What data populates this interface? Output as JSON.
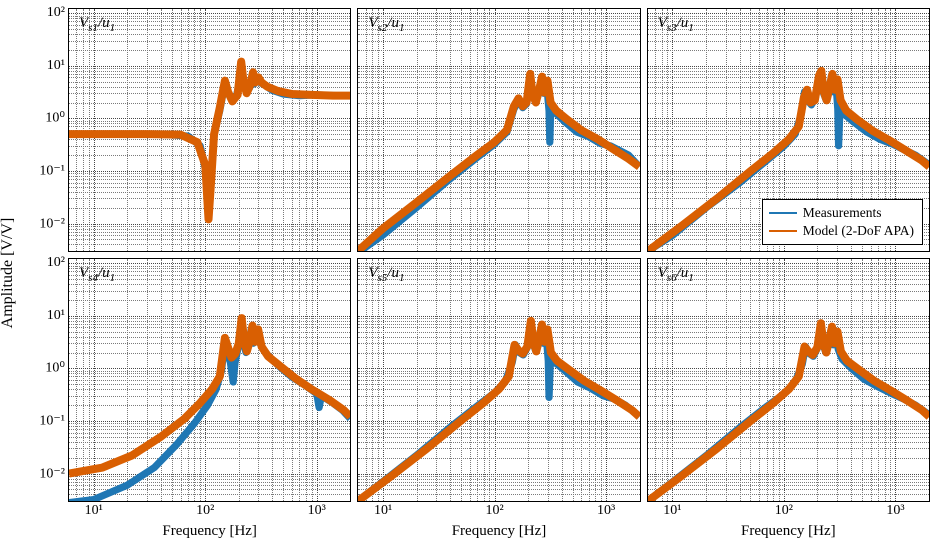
{
  "ylabel": "Amplitude [V/V]",
  "xlabel": "Frequency [Hz]",
  "x_tick_decades": [
    10,
    100,
    1000
  ],
  "x_tick_labels": [
    "10¹",
    "10²",
    "10³"
  ],
  "y_tick_decades": [
    0.001,
    0.01,
    0.1,
    1,
    10,
    100
  ],
  "y_tick_labels": [
    "10⁻³",
    "10⁻²",
    "10⁻¹",
    "10⁰",
    "10¹",
    "10²"
  ],
  "colors": {
    "measurements": "#1f77b4",
    "model": "#d95f02",
    "grid_minor": "#7a7a7a",
    "grid_major": "#464646",
    "axis": "#000000",
    "background": "#ffffff"
  },
  "line_width_meas": 1.8,
  "line_width_model": 2.0,
  "legend": {
    "panel_index": 2,
    "items": [
      {
        "label": "Measurements",
        "color_key": "measurements"
      },
      {
        "label": "Model (2-DoF APA)",
        "color_key": "model"
      }
    ]
  },
  "panels": [
    {
      "title_html": "V<span class='sub'>s1</span>/u<span class='sub'>1</span>",
      "xlim": [
        6,
        2000
      ],
      "ylim": [
        0.003,
        120
      ],
      "ytick_decades_shown": [
        0.01,
        0.1,
        1,
        10,
        100
      ],
      "meas": [
        [
          6,
          0.5
        ],
        [
          20,
          0.5
        ],
        [
          40,
          0.5
        ],
        [
          70,
          0.46
        ],
        [
          90,
          0.3
        ],
        [
          100,
          0.11
        ],
        [
          107,
          0.018
        ],
        [
          113,
          0.07
        ],
        [
          120,
          0.5
        ],
        [
          135,
          1.4
        ],
        [
          148,
          4.0
        ],
        [
          160,
          3.0
        ],
        [
          175,
          2.2
        ],
        [
          190,
          2.6
        ],
        [
          205,
          5.5
        ],
        [
          212,
          10
        ],
        [
          220,
          5.0
        ],
        [
          235,
          3.2
        ],
        [
          250,
          3.8
        ],
        [
          262,
          6.3
        ],
        [
          275,
          4.5
        ],
        [
          295,
          5.8
        ],
        [
          310,
          4.8
        ],
        [
          340,
          4.3
        ],
        [
          400,
          3.4
        ],
        [
          500,
          2.9
        ],
        [
          700,
          2.7
        ],
        [
          1000,
          2.8
        ],
        [
          1500,
          2.7
        ],
        [
          2000,
          2.7
        ]
      ],
      "model": [
        [
          6,
          0.5
        ],
        [
          30,
          0.5
        ],
        [
          60,
          0.49
        ],
        [
          85,
          0.35
        ],
        [
          100,
          0.13
        ],
        [
          107,
          0.012
        ],
        [
          112,
          0.05
        ],
        [
          120,
          0.5
        ],
        [
          135,
          1.6
        ],
        [
          150,
          5.2
        ],
        [
          160,
          3.2
        ],
        [
          175,
          2.1
        ],
        [
          195,
          2.8
        ],
        [
          210,
          12
        ],
        [
          220,
          5.2
        ],
        [
          235,
          3.0
        ],
        [
          252,
          4.2
        ],
        [
          268,
          7.5
        ],
        [
          282,
          4.8
        ],
        [
          300,
          6.0
        ],
        [
          320,
          4.8
        ],
        [
          360,
          4.0
        ],
        [
          450,
          3.3
        ],
        [
          600,
          2.9
        ],
        [
          900,
          2.8
        ],
        [
          1400,
          2.7
        ],
        [
          2000,
          2.7
        ]
      ]
    },
    {
      "title_html": "V<span class='sub'>s2</span>/u<span class='sub'>1</span>",
      "xlim": [
        6,
        2000
      ],
      "ylim": [
        0.003,
        120
      ],
      "ytick_decades_shown": [],
      "meas": [
        [
          6,
          0.0028
        ],
        [
          10,
          0.006
        ],
        [
          20,
          0.02
        ],
        [
          40,
          0.07
        ],
        [
          70,
          0.18
        ],
        [
          100,
          0.32
        ],
        [
          130,
          0.55
        ],
        [
          150,
          1.5
        ],
        [
          165,
          2.2
        ],
        [
          180,
          1.6
        ],
        [
          195,
          1.9
        ],
        [
          210,
          5.5
        ],
        [
          220,
          2.8
        ],
        [
          235,
          2.0
        ],
        [
          252,
          3.2
        ],
        [
          268,
          5.5
        ],
        [
          278,
          3.0
        ],
        [
          295,
          4.5
        ],
        [
          310,
          1.4
        ],
        [
          315,
          0.35
        ],
        [
          320,
          1.2
        ],
        [
          350,
          1.3
        ],
        [
          420,
          0.9
        ],
        [
          550,
          0.55
        ],
        [
          700,
          0.45
        ],
        [
          900,
          0.33
        ],
        [
          1100,
          0.3
        ],
        [
          1300,
          0.25
        ],
        [
          1600,
          0.2
        ],
        [
          2000,
          0.12
        ]
      ],
      "model": [
        [
          6,
          0.003
        ],
        [
          10,
          0.008
        ],
        [
          20,
          0.025
        ],
        [
          40,
          0.08
        ],
        [
          70,
          0.2
        ],
        [
          100,
          0.35
        ],
        [
          130,
          0.6
        ],
        [
          150,
          1.7
        ],
        [
          165,
          2.4
        ],
        [
          180,
          1.7
        ],
        [
          195,
          2.0
        ],
        [
          210,
          7.0
        ],
        [
          220,
          3.0
        ],
        [
          236,
          2.0
        ],
        [
          252,
          3.4
        ],
        [
          268,
          6.2
        ],
        [
          282,
          3.1
        ],
        [
          300,
          5.2
        ],
        [
          320,
          2.0
        ],
        [
          360,
          1.4
        ],
        [
          450,
          0.95
        ],
        [
          600,
          0.6
        ],
        [
          850,
          0.4
        ],
        [
          1200,
          0.25
        ],
        [
          1600,
          0.17
        ],
        [
          2000,
          0.12
        ]
      ]
    },
    {
      "title_html": "V<span class='sub'>s3</span>/u<span class='sub'>1</span>",
      "xlim": [
        6,
        2000
      ],
      "ylim": [
        0.003,
        120
      ],
      "ytick_decades_shown": [],
      "legend_here": true,
      "meas": [
        [
          6,
          0.003
        ],
        [
          10,
          0.006
        ],
        [
          20,
          0.02
        ],
        [
          40,
          0.06
        ],
        [
          70,
          0.16
        ],
        [
          100,
          0.3
        ],
        [
          125,
          0.5
        ],
        [
          142,
          1.2
        ],
        [
          152,
          3.2
        ],
        [
          162,
          2.2
        ],
        [
          175,
          1.8
        ],
        [
          190,
          2.4
        ],
        [
          205,
          6.0
        ],
        [
          215,
          7.5
        ],
        [
          225,
          3.0
        ],
        [
          238,
          2.2
        ],
        [
          252,
          3.5
        ],
        [
          265,
          6.5
        ],
        [
          275,
          3.2
        ],
        [
          290,
          5.0
        ],
        [
          302,
          1.5
        ],
        [
          307,
          0.3
        ],
        [
          315,
          1.3
        ],
        [
          345,
          1.2
        ],
        [
          420,
          0.85
        ],
        [
          550,
          0.55
        ],
        [
          720,
          0.4
        ],
        [
          950,
          0.32
        ],
        [
          1200,
          0.25
        ],
        [
          1500,
          0.2
        ],
        [
          2000,
          0.13
        ]
      ],
      "model": [
        [
          6,
          0.003
        ],
        [
          12,
          0.009
        ],
        [
          25,
          0.03
        ],
        [
          50,
          0.1
        ],
        [
          80,
          0.22
        ],
        [
          110,
          0.4
        ],
        [
          135,
          0.7
        ],
        [
          150,
          2.5
        ],
        [
          160,
          3.5
        ],
        [
          172,
          2.0
        ],
        [
          188,
          2.2
        ],
        [
          205,
          6.5
        ],
        [
          215,
          8.0
        ],
        [
          226,
          3.2
        ],
        [
          240,
          2.2
        ],
        [
          255,
          3.8
        ],
        [
          270,
          7.0
        ],
        [
          285,
          3.5
        ],
        [
          300,
          5.5
        ],
        [
          320,
          2.2
        ],
        [
          360,
          1.4
        ],
        [
          450,
          0.95
        ],
        [
          620,
          0.58
        ],
        [
          880,
          0.38
        ],
        [
          1250,
          0.24
        ],
        [
          1700,
          0.16
        ],
        [
          2000,
          0.12
        ]
      ]
    },
    {
      "title_html": "V<span class='sub'>s4</span>/u<span class='sub'>1</span>",
      "xlim": [
        6,
        2000
      ],
      "ylim": [
        0.003,
        120
      ],
      "ytick_decades_shown": [
        0.01,
        0.1,
        1,
        10,
        100
      ],
      "show_xticks": true,
      "meas": [
        [
          6,
          0.0028
        ],
        [
          10,
          0.0032
        ],
        [
          20,
          0.006
        ],
        [
          35,
          0.013
        ],
        [
          55,
          0.035
        ],
        [
          80,
          0.09
        ],
        [
          105,
          0.2
        ],
        [
          125,
          0.4
        ],
        [
          140,
          0.9
        ],
        [
          150,
          3.5
        ],
        [
          158,
          2.0
        ],
        [
          168,
          1.3
        ],
        [
          178,
          0.55
        ],
        [
          185,
          1.3
        ],
        [
          198,
          2.6
        ],
        [
          210,
          8.0
        ],
        [
          220,
          3.2
        ],
        [
          232,
          2.0
        ],
        [
          245,
          2.8
        ],
        [
          258,
          5.5
        ],
        [
          270,
          3.0
        ],
        [
          285,
          5.0
        ],
        [
          300,
          3.5
        ],
        [
          325,
          2.4
        ],
        [
          380,
          1.6
        ],
        [
          470,
          1.05
        ],
        [
          600,
          0.68
        ],
        [
          780,
          0.48
        ],
        [
          1000,
          0.33
        ],
        [
          1050,
          0.18
        ],
        [
          1100,
          0.3
        ],
        [
          1350,
          0.23
        ],
        [
          1700,
          0.16
        ],
        [
          2000,
          0.11
        ]
      ],
      "model": [
        [
          6,
          0.01
        ],
        [
          12,
          0.013
        ],
        [
          22,
          0.022
        ],
        [
          40,
          0.05
        ],
        [
          65,
          0.11
        ],
        [
          90,
          0.22
        ],
        [
          115,
          0.4
        ],
        [
          135,
          0.7
        ],
        [
          150,
          3.8
        ],
        [
          160,
          2.5
        ],
        [
          172,
          1.6
        ],
        [
          186,
          1.9
        ],
        [
          200,
          3.0
        ],
        [
          212,
          9.0
        ],
        [
          223,
          3.5
        ],
        [
          236,
          2.1
        ],
        [
          250,
          3.2
        ],
        [
          265,
          6.5
        ],
        [
          280,
          3.2
        ],
        [
          298,
          5.5
        ],
        [
          320,
          2.6
        ],
        [
          365,
          1.7
        ],
        [
          470,
          1.1
        ],
        [
          640,
          0.65
        ],
        [
          900,
          0.4
        ],
        [
          1300,
          0.25
        ],
        [
          1750,
          0.16
        ],
        [
          2000,
          0.12
        ]
      ]
    },
    {
      "title_html": "V<span class='sub'>s5</span>/u<span class='sub'>1</span>",
      "xlim": [
        6,
        2000
      ],
      "ylim": [
        0.003,
        120
      ],
      "ytick_decades_shown": [],
      "show_xticks": true,
      "meas": [
        [
          6,
          0.003
        ],
        [
          10,
          0.007
        ],
        [
          20,
          0.022
        ],
        [
          40,
          0.075
        ],
        [
          70,
          0.19
        ],
        [
          100,
          0.34
        ],
        [
          125,
          0.55
        ],
        [
          145,
          1.3
        ],
        [
          155,
          2.8
        ],
        [
          168,
          2.0
        ],
        [
          182,
          1.8
        ],
        [
          198,
          2.5
        ],
        [
          212,
          7.0
        ],
        [
          223,
          3.0
        ],
        [
          236,
          2.1
        ],
        [
          250,
          3.4
        ],
        [
          263,
          6.0
        ],
        [
          275,
          3.0
        ],
        [
          290,
          5.2
        ],
        [
          305,
          1.4
        ],
        [
          310,
          0.28
        ],
        [
          318,
          1.2
        ],
        [
          350,
          1.3
        ],
        [
          430,
          0.9
        ],
        [
          560,
          0.55
        ],
        [
          730,
          0.42
        ],
        [
          950,
          0.3
        ],
        [
          1200,
          0.26
        ],
        [
          1500,
          0.2
        ],
        [
          2000,
          0.12
        ]
      ],
      "model": [
        [
          6,
          0.003
        ],
        [
          12,
          0.009
        ],
        [
          25,
          0.03
        ],
        [
          50,
          0.1
        ],
        [
          80,
          0.22
        ],
        [
          110,
          0.4
        ],
        [
          135,
          0.7
        ],
        [
          152,
          2.8
        ],
        [
          165,
          2.2
        ],
        [
          180,
          1.9
        ],
        [
          198,
          2.6
        ],
        [
          213,
          8.0
        ],
        [
          225,
          3.2
        ],
        [
          238,
          2.1
        ],
        [
          253,
          3.6
        ],
        [
          268,
          6.8
        ],
        [
          283,
          3.2
        ],
        [
          300,
          5.5
        ],
        [
          322,
          2.0
        ],
        [
          365,
          1.4
        ],
        [
          465,
          0.95
        ],
        [
          640,
          0.58
        ],
        [
          900,
          0.38
        ],
        [
          1280,
          0.24
        ],
        [
          1720,
          0.16
        ],
        [
          2000,
          0.12
        ]
      ]
    },
    {
      "title_html": "V<span class='sub'>s6</span>/u<span class='sub'>1</span>",
      "xlim": [
        6,
        2000
      ],
      "ylim": [
        0.003,
        120
      ],
      "ytick_decades_shown": [],
      "show_xticks": true,
      "meas": [
        [
          6,
          0.003
        ],
        [
          10,
          0.007
        ],
        [
          20,
          0.022
        ],
        [
          40,
          0.075
        ],
        [
          70,
          0.19
        ],
        [
          100,
          0.33
        ],
        [
          125,
          0.55
        ],
        [
          145,
          1.2
        ],
        [
          155,
          2.6
        ],
        [
          168,
          1.9
        ],
        [
          182,
          1.7
        ],
        [
          198,
          2.4
        ],
        [
          212,
          6.5
        ],
        [
          223,
          2.8
        ],
        [
          236,
          2.0
        ],
        [
          250,
          3.2
        ],
        [
          263,
          5.5
        ],
        [
          275,
          2.8
        ],
        [
          290,
          4.8
        ],
        [
          305,
          2.3
        ],
        [
          330,
          1.5
        ],
        [
          400,
          1.0
        ],
        [
          520,
          0.62
        ],
        [
          700,
          0.44
        ],
        [
          920,
          0.33
        ],
        [
          1180,
          0.26
        ],
        [
          1500,
          0.2
        ],
        [
          2000,
          0.13
        ]
      ],
      "model": [
        [
          6,
          0.003
        ],
        [
          12,
          0.009
        ],
        [
          25,
          0.03
        ],
        [
          50,
          0.1
        ],
        [
          80,
          0.22
        ],
        [
          110,
          0.4
        ],
        [
          135,
          0.7
        ],
        [
          152,
          2.6
        ],
        [
          165,
          2.1
        ],
        [
          180,
          1.8
        ],
        [
          198,
          2.5
        ],
        [
          213,
          7.2
        ],
        [
          225,
          3.0
        ],
        [
          238,
          2.0
        ],
        [
          253,
          3.4
        ],
        [
          268,
          6.2
        ],
        [
          283,
          3.0
        ],
        [
          300,
          5.0
        ],
        [
          322,
          2.1
        ],
        [
          365,
          1.4
        ],
        [
          465,
          0.95
        ],
        [
          640,
          0.58
        ],
        [
          900,
          0.38
        ],
        [
          1280,
          0.24
        ],
        [
          1720,
          0.16
        ],
        [
          2000,
          0.12
        ]
      ]
    }
  ]
}
